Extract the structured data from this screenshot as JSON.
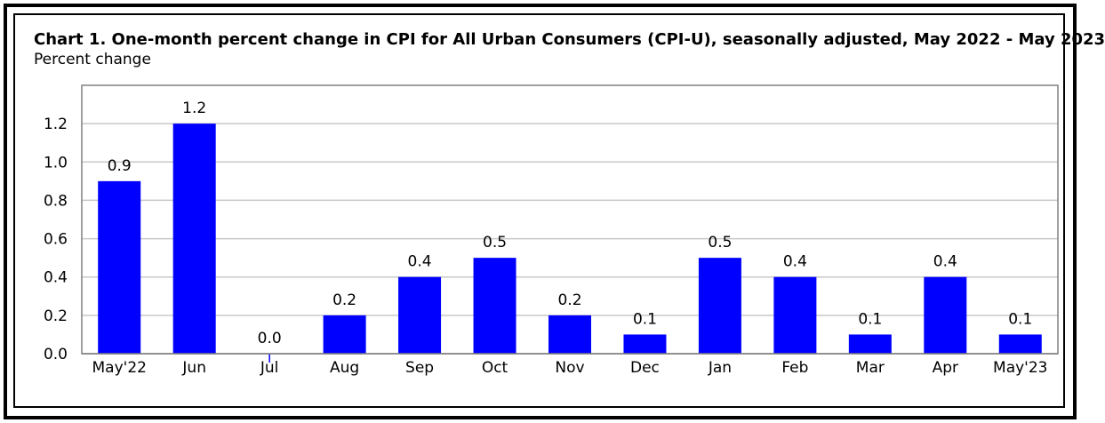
{
  "chart_data": {
    "type": "bar",
    "title": "Chart 1. One-month percent change in CPI for All Urban Consumers (CPI-U), seasonally adjusted, May 2022 - May 2023",
    "ylabel": "Percent change",
    "xlabel": "",
    "categories": [
      "May'22",
      "Jun",
      "Jul",
      "Aug",
      "Sep",
      "Oct",
      "Nov",
      "Dec",
      "Jan",
      "Feb",
      "Mar",
      "Apr",
      "May'23"
    ],
    "values": [
      0.9,
      1.2,
      0.0,
      0.2,
      0.4,
      0.5,
      0.2,
      0.1,
      0.5,
      0.4,
      0.1,
      0.4,
      0.1
    ],
    "data_labels": [
      "0.9",
      "1.2",
      "0.0",
      "0.2",
      "0.4",
      "0.5",
      "0.2",
      "0.1",
      "0.5",
      "0.4",
      "0.1",
      "0.4",
      "0.1"
    ],
    "yticks": [
      "0.0",
      "0.2",
      "0.4",
      "0.6",
      "0.8",
      "1.0",
      "1.2"
    ],
    "ylim": [
      0,
      1.4
    ],
    "grid": true,
    "legend": "none",
    "bar_color": "#0000FF",
    "grid_color": "#C8C8C8",
    "axis_color": "#808080"
  }
}
